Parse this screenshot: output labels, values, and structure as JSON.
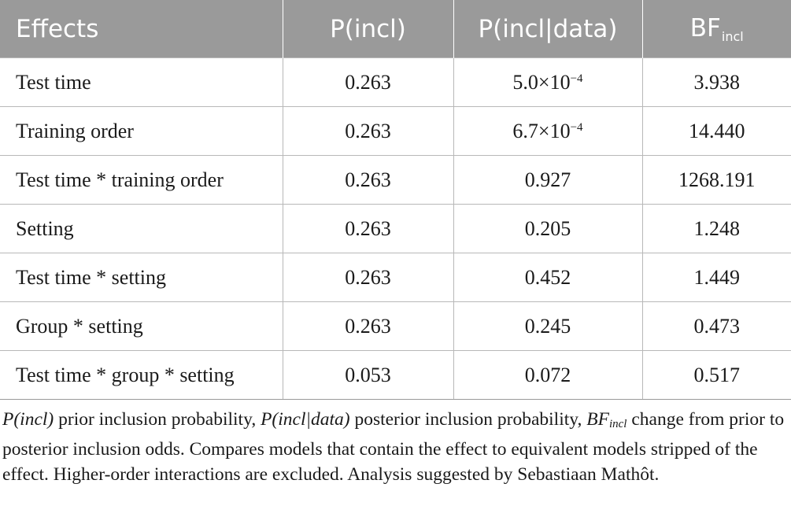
{
  "table": {
    "headers": {
      "effects": "Effects",
      "p_incl": "P(incl)",
      "p_incl_data": "P(incl|data)",
      "bf_base": "BF",
      "bf_sub": "incl"
    },
    "rows": [
      {
        "effect": "Test time",
        "p_incl": "0.263",
        "p_incl_data_base": "5.0×10",
        "p_incl_data_exp": "−4",
        "bf": "3.938"
      },
      {
        "effect": "Training order",
        "p_incl": "0.263",
        "p_incl_data_base": "6.7×10",
        "p_incl_data_exp": "−4",
        "bf": "14.440"
      },
      {
        "effect": "Test time * training order",
        "p_incl": "0.263",
        "p_incl_data_base": "0.927",
        "p_incl_data_exp": "",
        "bf": "1268.191"
      },
      {
        "effect": "Setting",
        "p_incl": "0.263",
        "p_incl_data_base": "0.205",
        "p_incl_data_exp": "",
        "bf": "1.248"
      },
      {
        "effect": "Test time * setting",
        "p_incl": "0.263",
        "p_incl_data_base": "0.452",
        "p_incl_data_exp": "",
        "bf": "1.449"
      },
      {
        "effect": "Group * setting",
        "p_incl": "0.263",
        "p_incl_data_base": "0.245",
        "p_incl_data_exp": "",
        "bf": "0.473"
      },
      {
        "effect": "Test time * group * setting",
        "p_incl": "0.053",
        "p_incl_data_base": "0.072",
        "p_incl_data_exp": "",
        "bf": "0.517"
      }
    ]
  },
  "footnote": {
    "term1": "P(incl)",
    "desc1": " prior inclusion probability, ",
    "term2": "P(incl|data)",
    "desc2": " posterior inclusion probability, ",
    "term3_base": "BF",
    "term3_sub": "incl",
    "desc3": " change from prior to posterior inclusion odds. Compares models that contain the effect to equivalent models stripped of the effect. Higher-order interactions are excluded. Analysis suggested by Sebastiaan Mathôt."
  }
}
